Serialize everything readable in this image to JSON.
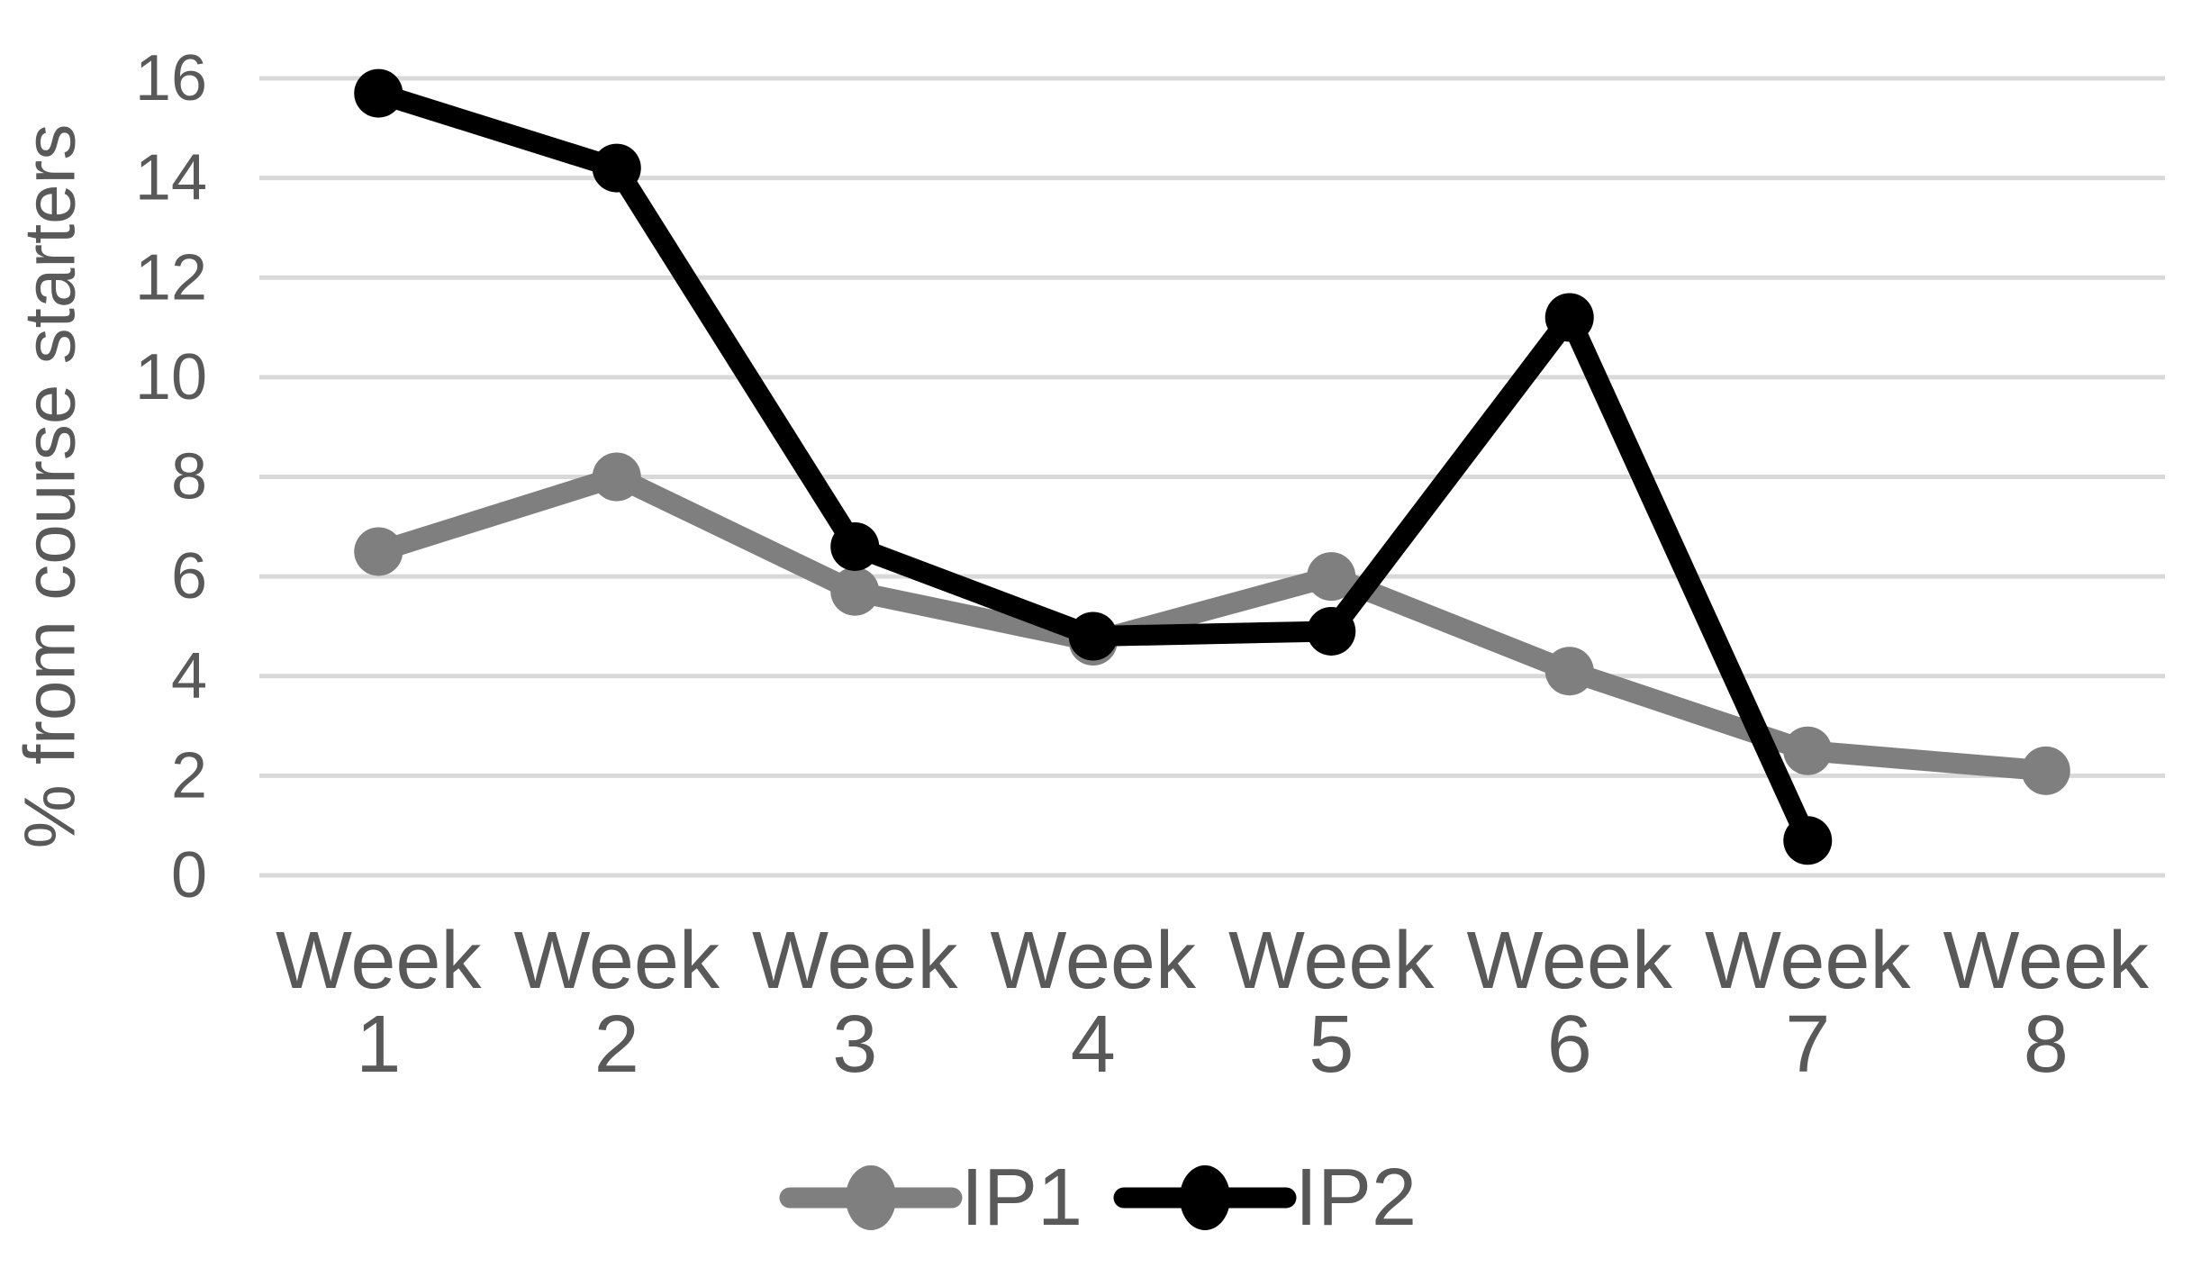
{
  "chart_data": {
    "type": "line",
    "title": "",
    "categories": [
      "Week 1",
      "Week 2",
      "Week 3",
      "Week 4",
      "Week 5",
      "Week 6",
      "Week 7",
      "Week 8"
    ],
    "series": [
      {
        "name": "IP1",
        "color": "#7F7F7F",
        "values": [
          6.5,
          8,
          5.7,
          4.7,
          6,
          4.1,
          2.5,
          2.1
        ]
      },
      {
        "name": "IP2",
        "color": "#000000",
        "values": [
          15.7,
          14.2,
          6.6,
          4.8,
          4.9,
          11.2,
          0.7,
          null
        ]
      }
    ],
    "xlabel": "",
    "ylabel": "% from course starters",
    "ylim": [
      0,
      16
    ],
    "ytick_step": 2,
    "yticks": [
      0,
      2,
      4,
      6,
      8,
      10,
      12,
      14,
      16
    ],
    "grid": "horizontal",
    "grid_color": "#D9D9D9",
    "text_color": "#595959",
    "background": "#FFFFFF",
    "marker": "circle",
    "legend": {
      "position": "bottom-center",
      "entries": [
        "IP1",
        "IP2"
      ]
    }
  }
}
